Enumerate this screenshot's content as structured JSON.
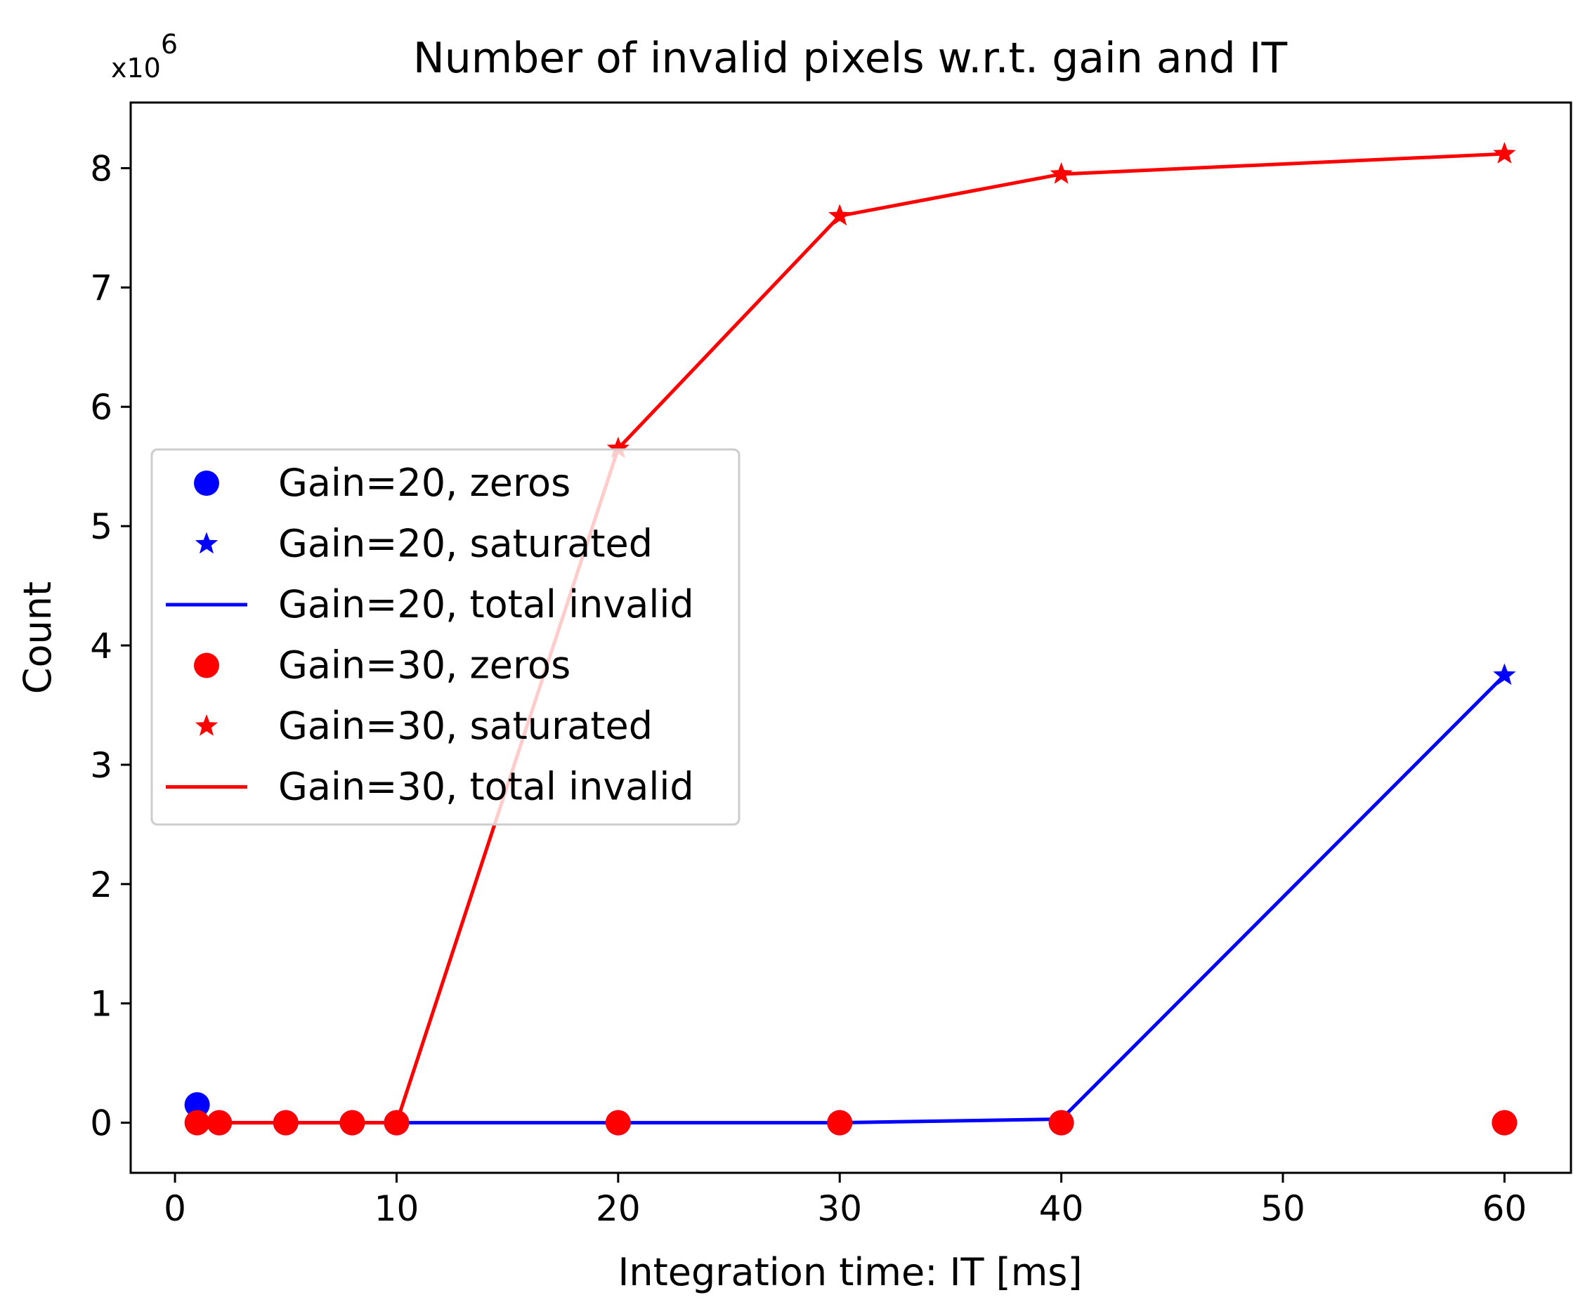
{
  "chart_data": {
    "type": "line",
    "title": "Number of invalid pixels w.r.t. gain and IT",
    "xlabel": "Integration time: IT [ms]",
    "ylabel": "Count",
    "y_offset_label": {
      "base": "x10",
      "exponent": "6"
    },
    "xlim": [
      -2,
      63
    ],
    "ylim": [
      -0.42,
      8.55
    ],
    "y_scale": 1000000,
    "x_ticks": [
      0,
      10,
      20,
      30,
      40,
      50,
      60
    ],
    "y_ticks": [
      0,
      1,
      2,
      3,
      4,
      5,
      6,
      7,
      8
    ],
    "grid": false,
    "legend_position": "center-left",
    "colors": {
      "gain20": "#0000ff",
      "gain30": "#ff0000"
    },
    "series": [
      {
        "name": "Gain=20, zeros",
        "style": "circle",
        "color": "#0000ff",
        "x": [
          1,
          2,
          5,
          8,
          10,
          20,
          30,
          40,
          60
        ],
        "y": [
          0.15,
          0,
          0,
          0,
          0,
          0,
          0,
          0,
          0
        ]
      },
      {
        "name": "Gain=20, saturated",
        "style": "star",
        "color": "#0000ff",
        "x": [
          60
        ],
        "y": [
          3.75
        ]
      },
      {
        "name": "Gain=20, total invalid",
        "style": "line",
        "color": "#0000ff",
        "x": [
          1,
          2,
          5,
          8,
          10,
          20,
          30,
          40,
          60
        ],
        "y": [
          0,
          0,
          0,
          0,
          0,
          0,
          0,
          0.03,
          3.75
        ]
      },
      {
        "name": "Gain=30, zeros",
        "style": "circle",
        "color": "#ff0000",
        "x": [
          1,
          2,
          5,
          8,
          10,
          20,
          30,
          40,
          60
        ],
        "y": [
          0,
          0,
          0,
          0,
          0,
          0,
          0,
          0,
          0
        ]
      },
      {
        "name": "Gain=30, saturated",
        "style": "star",
        "color": "#ff0000",
        "x": [
          20,
          30,
          40,
          60
        ],
        "y": [
          5.65,
          7.6,
          7.95,
          8.12
        ]
      },
      {
        "name": "Gain=30, total invalid",
        "style": "line",
        "color": "#ff0000",
        "x": [
          1,
          2,
          5,
          8,
          10,
          20,
          30,
          40,
          60
        ],
        "y": [
          0,
          0,
          0,
          0,
          0,
          5.65,
          7.6,
          7.95,
          8.12
        ]
      }
    ]
  }
}
